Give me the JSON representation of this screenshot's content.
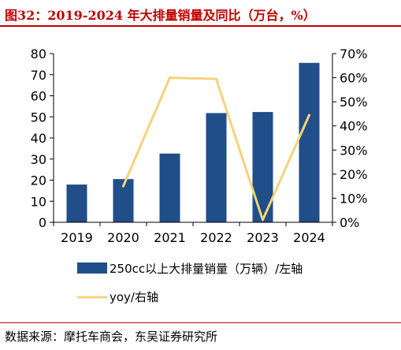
{
  "title": "图32：2019-2024 年大排量销量及同比（万台，%）",
  "source": "数据来源：摩托车商会，东吴证券研究所",
  "chart_data": {
    "type": "bar",
    "categories": [
      "2019",
      "2020",
      "2021",
      "2022",
      "2023",
      "2024"
    ],
    "series": [
      {
        "name": "250cc以上大排量销量（万辆）/左轴",
        "kind": "bar",
        "axis": "left",
        "color": "#1f4e89",
        "values": [
          17.9,
          20.5,
          32.6,
          51.8,
          52.3,
          75.6
        ]
      },
      {
        "name": "yoy/右轴",
        "kind": "line",
        "axis": "right",
        "color": "#f5d37a",
        "values": [
          null,
          0.15,
          0.6,
          0.595,
          0.01,
          0.445
        ]
      }
    ],
    "y_left": {
      "lim": [
        0,
        80
      ],
      "ticks": [
        0,
        10,
        20,
        30,
        40,
        50,
        60,
        70,
        80
      ],
      "tick_labels": [
        "0",
        "10",
        "20",
        "30",
        "40",
        "50",
        "60",
        "70",
        "80"
      ]
    },
    "y_right": {
      "lim": [
        0,
        0.7
      ],
      "ticks": [
        0,
        0.1,
        0.2,
        0.3,
        0.4,
        0.5,
        0.6,
        0.7
      ],
      "tick_labels": [
        "0%",
        "10%",
        "20%",
        "30%",
        "40%",
        "50%",
        "60%",
        "70%"
      ]
    },
    "legend_position": "bottom",
    "grid": false
  }
}
